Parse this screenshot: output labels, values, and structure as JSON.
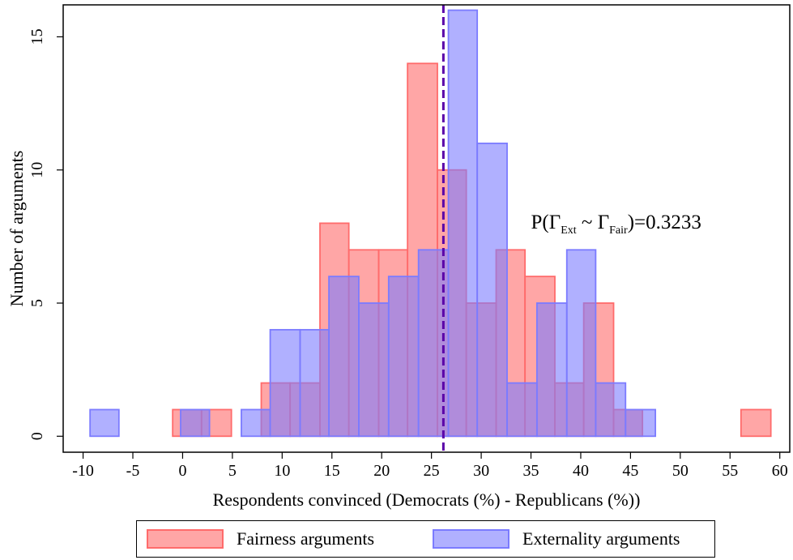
{
  "chart_data": {
    "type": "bar",
    "subtype": "overlaid-histogram",
    "xlabel": "Respondents convinced (Democrats (%) - Republicans (%))",
    "ylabel": "Number of arguments",
    "xlim": [
      -12,
      61
    ],
    "ylim": [
      -0.6,
      16.2
    ],
    "xticks": [
      -10,
      -5,
      0,
      5,
      10,
      15,
      20,
      25,
      30,
      35,
      40,
      45,
      50,
      55,
      60
    ],
    "yticks": [
      0,
      5,
      10,
      15
    ],
    "grid": false,
    "series": [
      {
        "name": "Fairness arguments",
        "color": "#ff6b6b",
        "bins": [
          {
            "x0": -1.0,
            "x1": 1.9,
            "count": 1
          },
          {
            "x0": 1.9,
            "x1": 4.9,
            "count": 1
          },
          {
            "x0": 7.9,
            "x1": 10.8,
            "count": 2
          },
          {
            "x0": 10.8,
            "x1": 13.8,
            "count": 2
          },
          {
            "x0": 13.8,
            "x1": 16.7,
            "count": 8
          },
          {
            "x0": 16.7,
            "x1": 19.7,
            "count": 7
          },
          {
            "x0": 19.7,
            "x1": 22.6,
            "count": 7
          },
          {
            "x0": 22.6,
            "x1": 25.6,
            "count": 14
          },
          {
            "x0": 25.6,
            "x1": 28.5,
            "count": 10
          },
          {
            "x0": 28.5,
            "x1": 31.5,
            "count": 5
          },
          {
            "x0": 31.5,
            "x1": 34.4,
            "count": 7
          },
          {
            "x0": 34.4,
            "x1": 37.4,
            "count": 6
          },
          {
            "x0": 37.4,
            "x1": 40.3,
            "count": 2
          },
          {
            "x0": 40.3,
            "x1": 43.3,
            "count": 5
          },
          {
            "x0": 43.3,
            "x1": 46.2,
            "count": 1
          },
          {
            "x0": 56.1,
            "x1": 59.1,
            "count": 1
          }
        ]
      },
      {
        "name": "Externality arguments",
        "color": "#7b7bff",
        "bins": [
          {
            "x0": -9.3,
            "x1": -6.4,
            "count": 1
          },
          {
            "x0": -0.2,
            "x1": 2.7,
            "count": 1
          },
          {
            "x0": 5.9,
            "x1": 8.8,
            "count": 1
          },
          {
            "x0": 8.8,
            "x1": 11.8,
            "count": 4
          },
          {
            "x0": 11.8,
            "x1": 14.7,
            "count": 4
          },
          {
            "x0": 14.7,
            "x1": 17.7,
            "count": 6
          },
          {
            "x0": 17.7,
            "x1": 20.7,
            "count": 5
          },
          {
            "x0": 20.7,
            "x1": 23.7,
            "count": 6
          },
          {
            "x0": 23.7,
            "x1": 26.7,
            "count": 7
          },
          {
            "x0": 26.7,
            "x1": 29.6,
            "count": 16
          },
          {
            "x0": 29.6,
            "x1": 32.6,
            "count": 11
          },
          {
            "x0": 32.6,
            "x1": 35.6,
            "count": 2
          },
          {
            "x0": 35.6,
            "x1": 38.6,
            "count": 5
          },
          {
            "x0": 38.6,
            "x1": 41.5,
            "count": 7
          },
          {
            "x0": 41.5,
            "x1": 44.5,
            "count": 2
          },
          {
            "x0": 44.5,
            "x1": 47.5,
            "count": 1
          }
        ]
      }
    ],
    "reference_line": {
      "x": 26.2,
      "color": "#5a00a8",
      "style": "dashed"
    },
    "annotation": {
      "prefix": "P(",
      "g1": "Γ",
      "sub1": "Ext",
      "mid": " ~ ",
      "g2": "Γ",
      "sub2": "Fair",
      "suffix": ")=0.3233",
      "x": 35.0,
      "y": 7.8
    },
    "legend": {
      "position": "bottom",
      "entries": [
        "Fairness arguments",
        "Externality arguments"
      ]
    }
  }
}
